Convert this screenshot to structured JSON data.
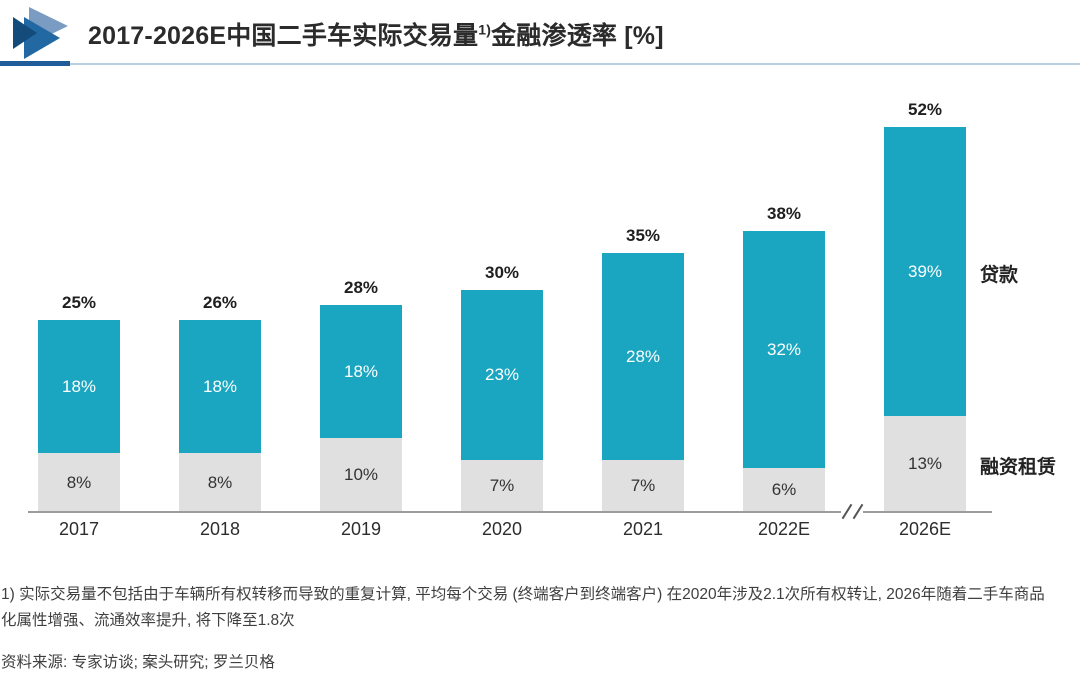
{
  "header": {
    "title_prefix": "2017-2026E中国二手车实际交易量",
    "title_footnote_marker": "1)",
    "title_suffix": "金融渗透率 [%]",
    "logo_icon": "double-play-triangles"
  },
  "colors": {
    "loan_teal": "#1aa6c0",
    "lease_gray": "#e0e0e1",
    "divider_dark_blue": "#1f5c99",
    "divider_light_blue": "#bccfe1",
    "axis_gray": "#9c9c9c",
    "title_text": "#2b2b2b",
    "footnote_text": "#3f3f3f",
    "logo_light_blue": "#7b9cc2",
    "logo_mid_blue": "#2268a3",
    "logo_dark_blue": "#134b7a"
  },
  "chart_data": {
    "type": "bar",
    "stacked": true,
    "title": "2017-2026E中国二手车实际交易量1)金融渗透率 [%]",
    "unit": "%",
    "categories": [
      "2017",
      "2018",
      "2019",
      "2020",
      "2021",
      "2022E",
      "2026E"
    ],
    "series": [
      {
        "name": "融资租赁",
        "color": "#e0e0e1",
        "values": [
          8,
          8,
          10,
          7,
          7,
          6,
          13
        ]
      },
      {
        "name": "贷款",
        "color": "#1aa6c0",
        "values": [
          18,
          18,
          18,
          23,
          28,
          32,
          39
        ]
      }
    ],
    "totals": [
      "25%",
      "26%",
      "28%",
      "30%",
      "35%",
      "38%",
      "52%"
    ],
    "segment_labels": {
      "lease": [
        "8%",
        "8%",
        "10%",
        "7%",
        "7%",
        "6%",
        "13%"
      ],
      "loan": [
        "18%",
        "18%",
        "18%",
        "23%",
        "28%",
        "32%",
        "39%"
      ]
    },
    "legend": {
      "loan": "贷款",
      "lease": "融资租赁"
    },
    "legend_position": "right-of-last-bar",
    "axis_break_between": [
      "2022E",
      "2026E"
    ],
    "grid": false,
    "ylim": [
      0,
      56
    ]
  },
  "footnote": "1) 实际交易量不包括由于车辆所有权转移而导致的重复计算, 平均每个交易 (终端客户到终端客户) 在2020年涉及2.1次所有权转让, 2026年随着二手车商品化属性增强、流通效率提升, 将下降至1.8次",
  "source": "资料来源: 专家访谈; 案头研究; 罗兰贝格"
}
